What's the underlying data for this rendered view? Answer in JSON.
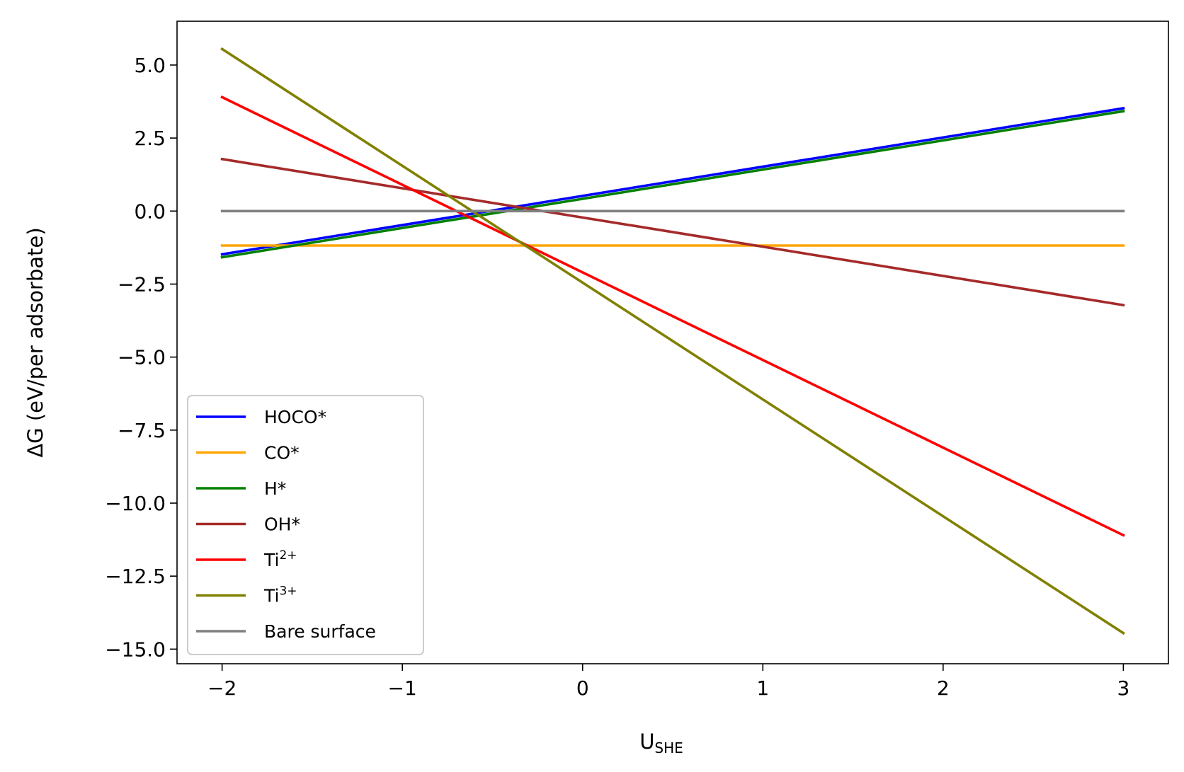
{
  "chart_data": {
    "type": "line",
    "xlabel": "U",
    "xlabel_sub": "SHE",
    "ylabel": "ΔG (eV/per adsorbate)",
    "xlim": [
      -2.25,
      3.25
    ],
    "ylim": [
      -15.5,
      6.5
    ],
    "x_ticks": [
      -2,
      -1,
      0,
      1,
      2,
      3
    ],
    "x_tick_labels": [
      "−2",
      "−1",
      "0",
      "1",
      "2",
      "3"
    ],
    "y_ticks": [
      5.0,
      2.5,
      0.0,
      -2.5,
      -5.0,
      -7.5,
      -10.0,
      -12.5,
      -15.0
    ],
    "y_tick_labels": [
      "5.0",
      "2.5",
      "0.0",
      "−2.5",
      "−5.0",
      "−7.5",
      "−10.0",
      "−12.5",
      "−15.0"
    ],
    "grid": false,
    "legend_position": "lower-left",
    "series": [
      {
        "name": "HOCO*",
        "label": "HOCO*",
        "sup": "",
        "color": "#0000ff",
        "x": [
          -2,
          3
        ],
        "y": [
          -1.48,
          3.52
        ]
      },
      {
        "name": "CO*",
        "label": "CO*",
        "sup": "",
        "color": "#ffa500",
        "x": [
          -2,
          3
        ],
        "y": [
          -1.18,
          -1.18
        ]
      },
      {
        "name": "H*",
        "label": "H*",
        "sup": "",
        "color": "#008000",
        "x": [
          -2,
          3
        ],
        "y": [
          -1.58,
          3.42
        ]
      },
      {
        "name": "OH*",
        "label": "OH*",
        "sup": "",
        "color": "#a52a2a",
        "x": [
          -2,
          3
        ],
        "y": [
          1.78,
          -3.22
        ]
      },
      {
        "name": "Ti2+",
        "label": "Ti",
        "sup": "2+",
        "color": "#ff0000",
        "x": [
          -2,
          3
        ],
        "y": [
          3.9,
          -11.1
        ]
      },
      {
        "name": "Ti3+",
        "label": "Ti",
        "sup": "3+",
        "color": "#808000",
        "x": [
          -2,
          3
        ],
        "y": [
          5.55,
          -14.45
        ]
      },
      {
        "name": "Bare surface",
        "label": "Bare surface",
        "sup": "",
        "color": "#808080",
        "x": [
          -2,
          3
        ],
        "y": [
          0.0,
          0.0
        ]
      }
    ]
  }
}
